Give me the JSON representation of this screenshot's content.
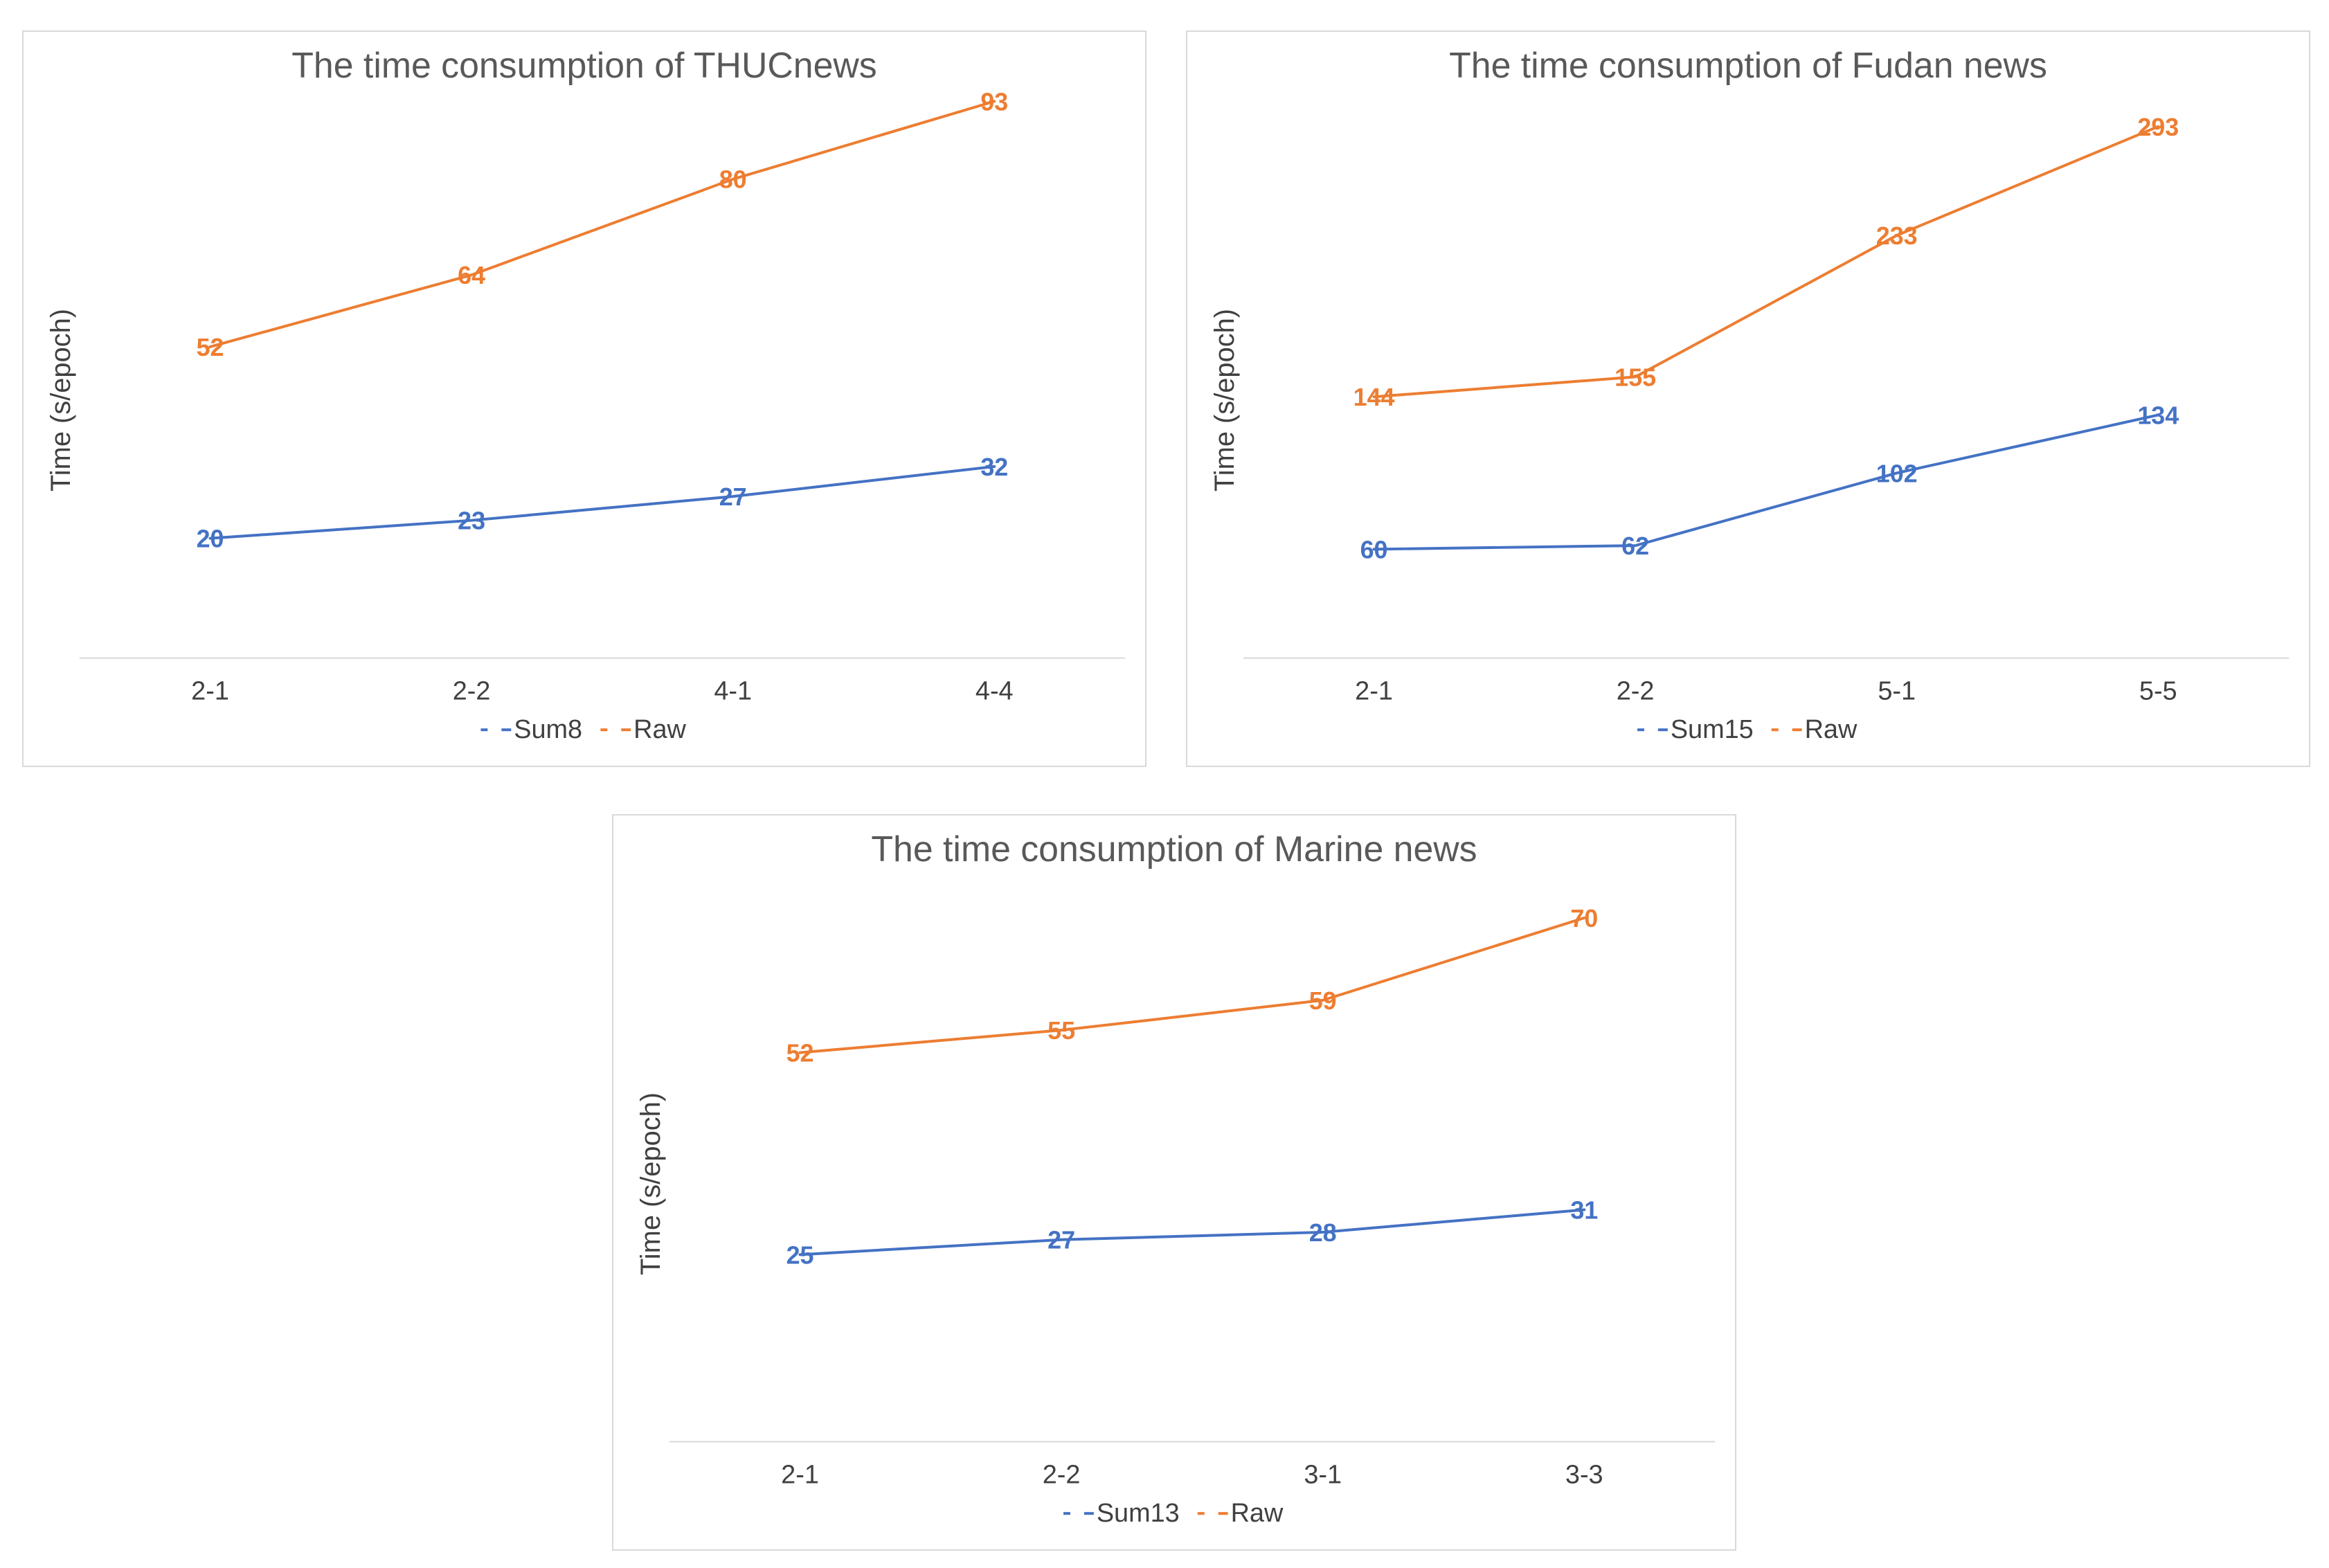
{
  "colors": {
    "sum": "#4472C4",
    "raw": "#ED7D31",
    "axis": "#d9d9d9"
  },
  "chart_data": [
    {
      "type": "line",
      "title": "The time consumption of THUCnews",
      "xlabel": "",
      "ylabel": "Time (s/epoch)",
      "categories": [
        "2-1",
        "2-2",
        "4-1",
        "4-4"
      ],
      "ylim": [
        0,
        100
      ],
      "legend_position": "bottom",
      "series": [
        {
          "name": "Sum8",
          "color_key": "sum",
          "values": [
            20,
            23,
            27,
            32
          ],
          "labels": [
            "20",
            "23",
            "27",
            "32"
          ]
        },
        {
          "name": "Raw",
          "color_key": "raw",
          "values": [
            52,
            64,
            80,
            93
          ],
          "labels": [
            "52",
            "64",
            "80",
            "93"
          ]
        }
      ]
    },
    {
      "type": "line",
      "title": "The time consumption of Fudan news",
      "xlabel": "",
      "ylabel": "Time (s/epoch)",
      "categories": [
        "2-1",
        "2-2",
        "5-1",
        "5-5"
      ],
      "ylim": [
        0,
        330
      ],
      "legend_position": "bottom",
      "series": [
        {
          "name": "Sum15",
          "color_key": "sum",
          "values": [
            60,
            62,
            102,
            134
          ],
          "labels": [
            "60",
            "62",
            "102",
            "134"
          ]
        },
        {
          "name": "Raw",
          "color_key": "raw",
          "values": [
            144,
            155,
            233,
            293
          ],
          "labels": [
            "144",
            "155",
            "233",
            "293"
          ]
        }
      ]
    },
    {
      "type": "line",
      "title": "The time consumption of Marine news",
      "xlabel": "",
      "ylabel": "Time (s/epoch)",
      "categories": [
        "2-1",
        "2-2",
        "3-1",
        "3-3"
      ],
      "ylim": [
        0,
        80
      ],
      "legend_position": "bottom",
      "series": [
        {
          "name": "Sum13",
          "color_key": "sum",
          "values": [
            25,
            27,
            28,
            31
          ],
          "labels": [
            "25",
            "27",
            "28",
            "31"
          ]
        },
        {
          "name": "Raw",
          "color_key": "raw",
          "values": [
            52,
            55,
            59,
            70
          ],
          "labels": [
            "52",
            "55",
            "59",
            "70"
          ]
        }
      ]
    }
  ]
}
